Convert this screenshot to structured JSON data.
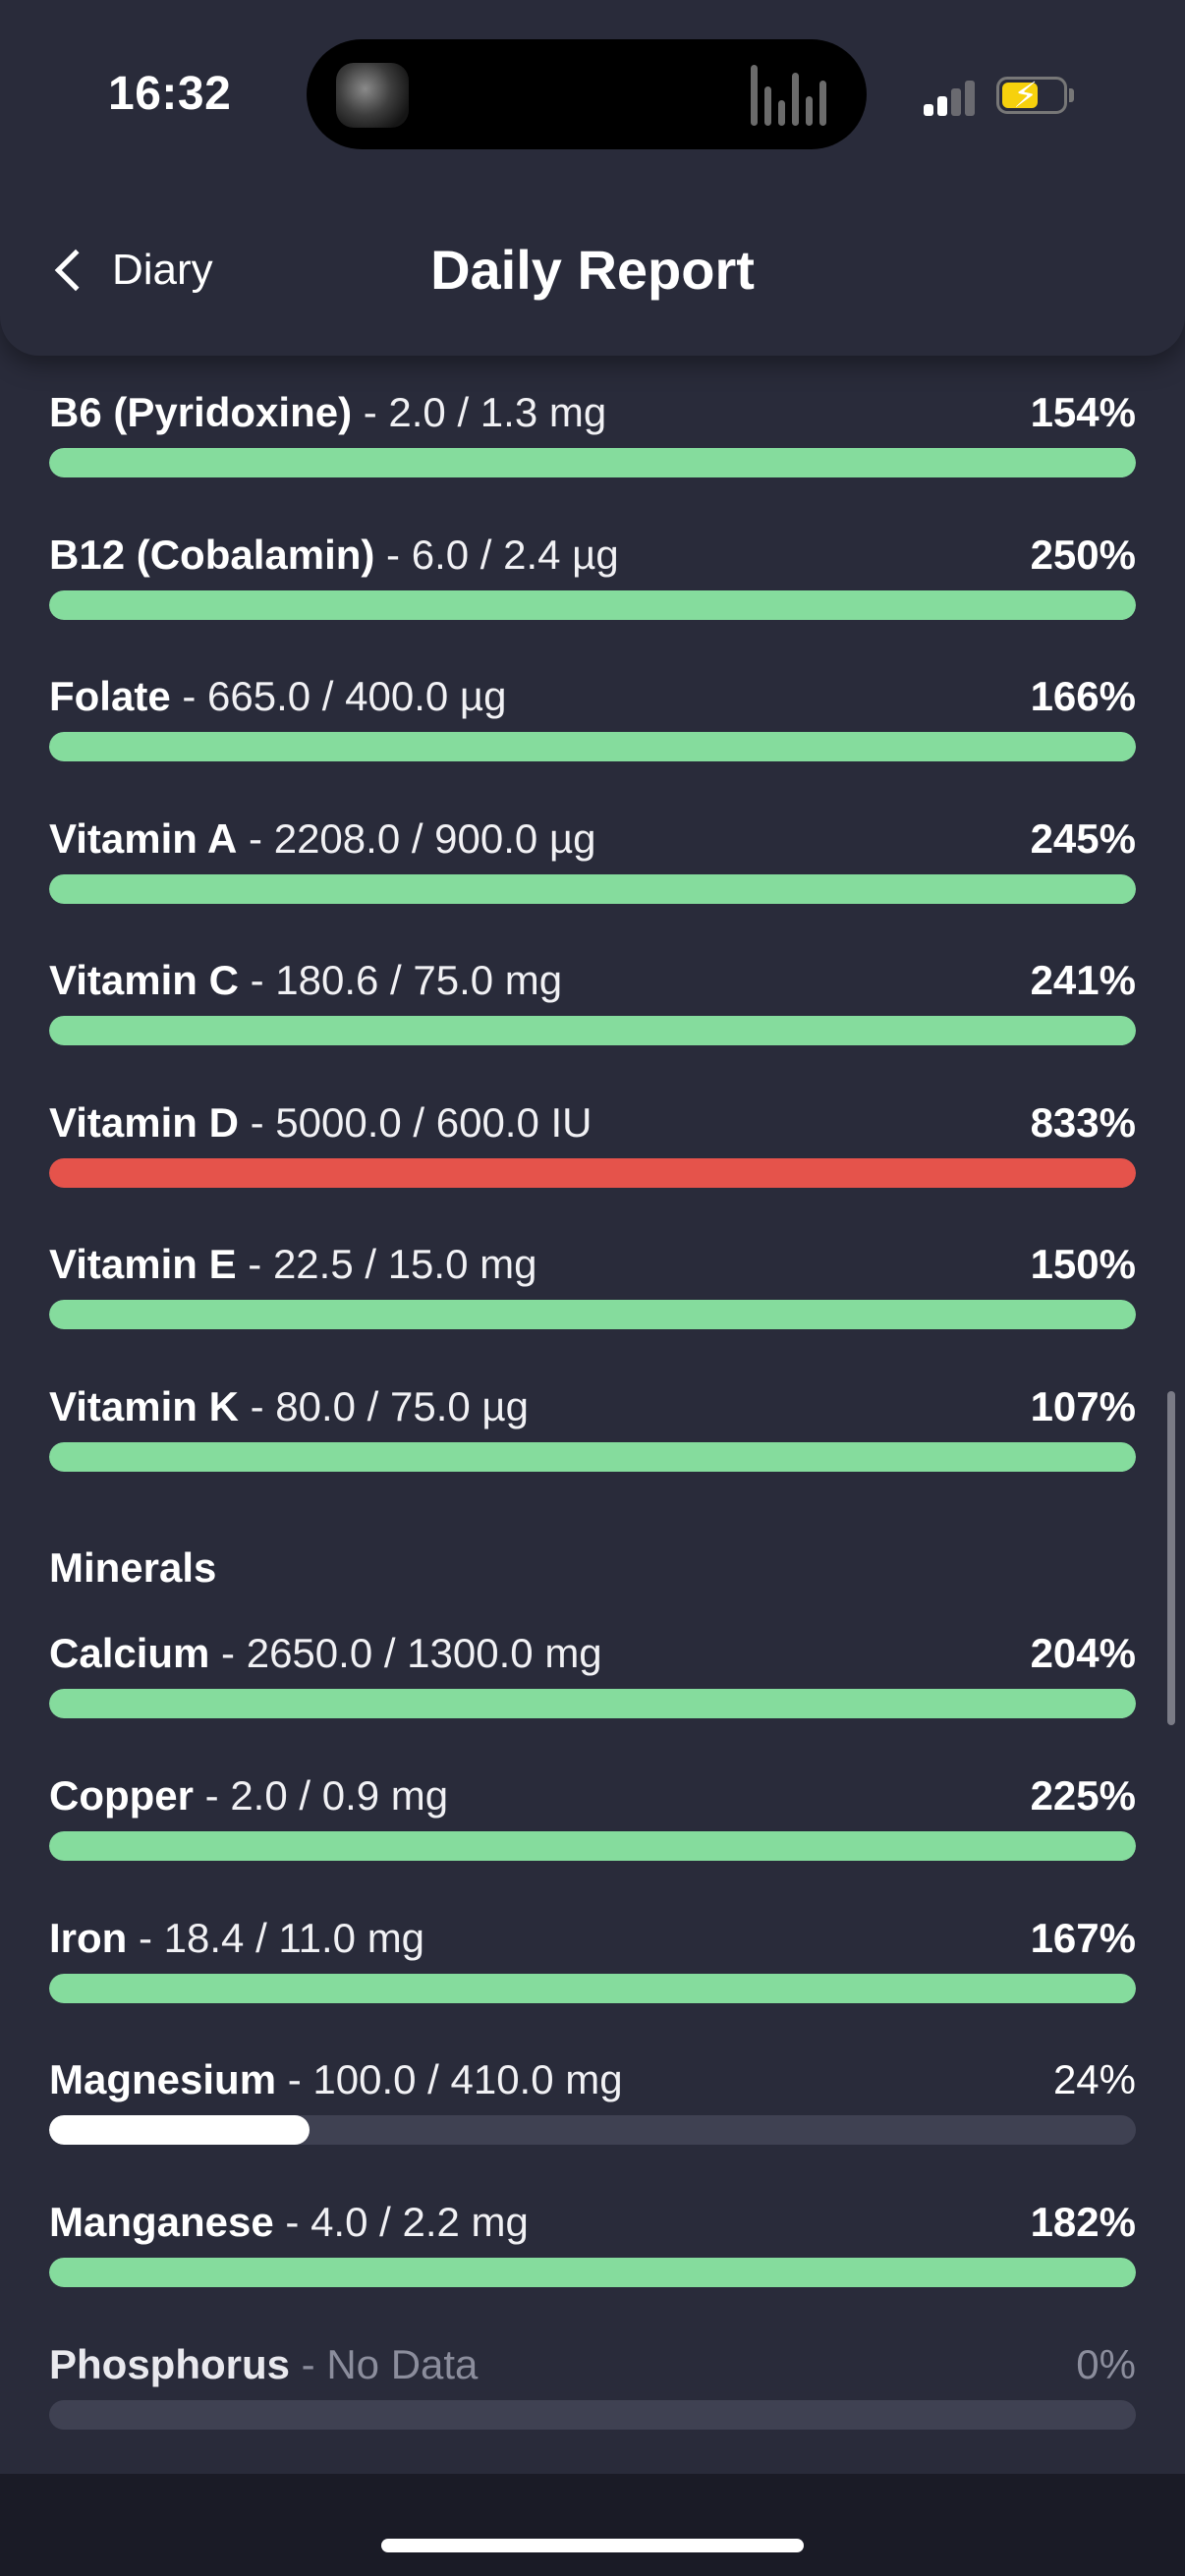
{
  "status_bar": {
    "time": "16:32",
    "colors": {
      "battery": "#f6d10d"
    },
    "icons": [
      "media-thumbnail",
      "audio-waveform-icon",
      "cellular-signal-icon",
      "battery-charging-icon"
    ]
  },
  "header": {
    "back_label": "Diary",
    "title": "Daily Report",
    "icons": [
      "chevron-left-icon"
    ]
  },
  "colors": {
    "ok": "#85dc9d",
    "over": "#e5534b",
    "under": "#ffffff",
    "track": "#3f4152",
    "background": "#292b3a"
  },
  "vitamins": [
    {
      "name": "B6 (Pyridoxine)",
      "amount": " - 2.0 / 1.3 mg",
      "percent": "154%",
      "fill": 1.0,
      "status": "ok"
    },
    {
      "name": "B12 (Cobalamin)",
      "amount": " - 6.0 / 2.4 µg",
      "percent": "250%",
      "fill": 1.0,
      "status": "ok"
    },
    {
      "name": "Folate",
      "amount": " - 665.0 / 400.0 µg",
      "percent": "166%",
      "fill": 1.0,
      "status": "ok"
    },
    {
      "name": "Vitamin A",
      "amount": " - 2208.0 / 900.0 µg",
      "percent": "245%",
      "fill": 1.0,
      "status": "ok"
    },
    {
      "name": "Vitamin C",
      "amount": " - 180.6 / 75.0 mg",
      "percent": "241%",
      "fill": 1.0,
      "status": "ok"
    },
    {
      "name": "Vitamin D",
      "amount": " - 5000.0 / 600.0 IU",
      "percent": "833%",
      "fill": 1.0,
      "status": "over"
    },
    {
      "name": "Vitamin E",
      "amount": " - 22.5 / 15.0 mg",
      "percent": "150%",
      "fill": 1.0,
      "status": "ok"
    },
    {
      "name": "Vitamin K",
      "amount": " - 80.0 / 75.0 µg",
      "percent": "107%",
      "fill": 1.0,
      "status": "ok"
    }
  ],
  "minerals_title": "Minerals",
  "minerals": [
    {
      "name": "Calcium",
      "amount": " - 2650.0 / 1300.0 mg",
      "percent": "204%",
      "fill": 1.0,
      "status": "ok"
    },
    {
      "name": "Copper",
      "amount": " - 2.0 / 0.9 mg",
      "percent": "225%",
      "fill": 1.0,
      "status": "ok"
    },
    {
      "name": "Iron",
      "amount": " - 18.4 / 11.0 mg",
      "percent": "167%",
      "fill": 1.0,
      "status": "ok"
    },
    {
      "name": "Magnesium",
      "amount": " - 100.0 / 410.0 mg",
      "percent": "24%",
      "fill": 0.24,
      "status": "under"
    },
    {
      "name": "Manganese",
      "amount": " - 4.0 / 2.2 mg",
      "percent": "182%",
      "fill": 1.0,
      "status": "ok"
    },
    {
      "name": "Phosphorus",
      "amount": " - No Data",
      "percent": "0%",
      "fill": 0,
      "status": "nodata"
    }
  ]
}
